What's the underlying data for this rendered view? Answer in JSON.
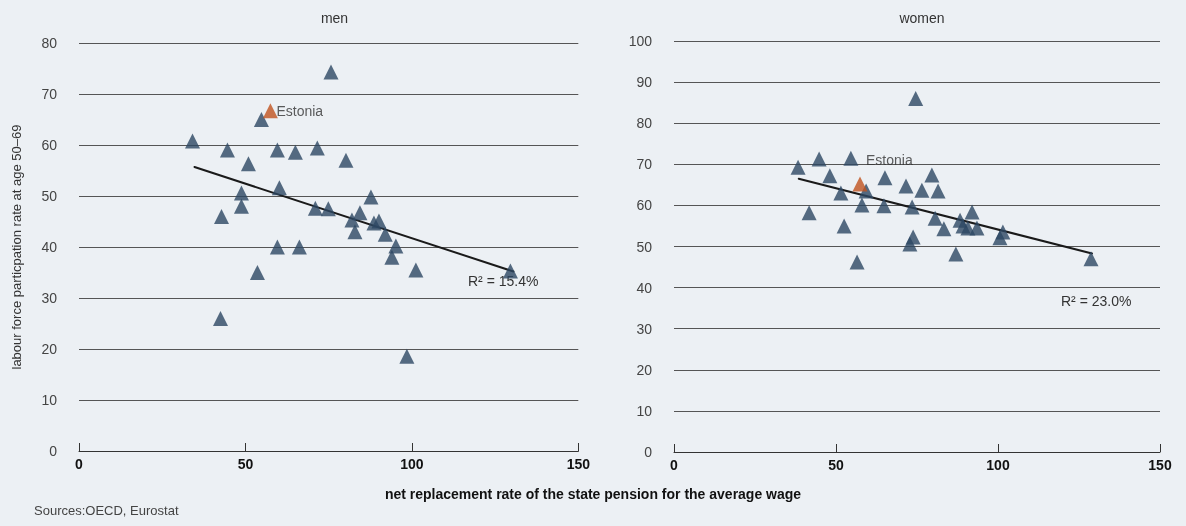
{
  "chart_data": [
    {
      "type": "scatter",
      "title": "men",
      "ylabel": "labour force particpation rate at age 50–69",
      "xlabel": "net replacement rate of the state pension for the average wage",
      "xlim": [
        0,
        150
      ],
      "xticks": [
        0,
        50,
        100,
        150
      ],
      "ylim": [
        0,
        80
      ],
      "yticks": [
        0,
        10,
        20,
        30,
        40,
        50,
        60,
        70,
        80
      ],
      "grid": "y",
      "marker": "triangle",
      "series": [
        {
          "color": "#2d4763",
          "x": [
            34.1,
            42.5,
            42.8,
            44.6,
            50.9,
            48.8,
            48.8,
            54.8,
            53.6,
            59.6,
            60.2,
            59.6,
            65,
            66.2,
            71.6,
            71,
            74.9,
            75.7,
            80.2,
            82,
            82.9,
            84.4,
            87.7,
            88.6,
            90.1,
            92,
            94,
            95.2,
            101.2,
            98.5,
            129.6
          ],
          "values": [
            60.8,
            26,
            46,
            59,
            56.3,
            50.6,
            48,
            65,
            35,
            59,
            51.6,
            40,
            58.6,
            40,
            59.4,
            47.6,
            47.5,
            74.3,
            57,
            45.3,
            43,
            46.7,
            49.8,
            44.7,
            45.1,
            42.5,
            38,
            40.2,
            35.5,
            18.6,
            35.3
          ]
        },
        {
          "color": "#c0521e",
          "x": [
            57.5
          ],
          "values": [
            66.7
          ]
        },
        {
          "type": "line",
          "marker": "none",
          "color": "#1a1a1a",
          "line_style": "solid",
          "x": [
            34.7,
            130.5
          ],
          "values": [
            55.7,
            35.2
          ]
        }
      ],
      "annotations": [
        {
          "text": "Estonia",
          "x": 57.5,
          "y": 66.7
        },
        "R² = 15.4%",
        "Sources:OECD, Eurostat"
      ]
    },
    {
      "type": "scatter",
      "title": "women",
      "xlim": [
        0,
        150
      ],
      "xticks": [
        0,
        50,
        100,
        150
      ],
      "ylim": [
        0,
        100
      ],
      "yticks": [
        0,
        10,
        20,
        30,
        40,
        50,
        60,
        70,
        80,
        90,
        100
      ],
      "grid": "y",
      "marker": "triangle",
      "series": [
        {
          "color": "#2d4763",
          "x": [
            38.3,
            41.7,
            44.8,
            48.1,
            51.5,
            52.5,
            54.6,
            56.5,
            59.3,
            58,
            64.8,
            65.1,
            71.6,
            72.8,
            73.8,
            73.5,
            74.6,
            76.5,
            79.6,
            81.5,
            80.6,
            83.3,
            87,
            88.3,
            89.2,
            90.7,
            92,
            93.5,
            100.6,
            101.5,
            128.7
          ],
          "values": [
            69.3,
            58.2,
            71.3,
            67.2,
            63,
            55,
            71.5,
            46.2,
            63.5,
            60.1,
            59.9,
            66.7,
            64.7,
            50.6,
            52.3,
            59.6,
            86,
            63.7,
            67.4,
            63.5,
            56.9,
            54.3,
            48.2,
            56.4,
            55,
            54.5,
            58.4,
            54.5,
            52.1,
            53.5,
            47
          ]
        },
        {
          "color": "#c0521e",
          "x": [
            57.4
          ],
          "values": [
            65.2
          ]
        },
        {
          "type": "line",
          "marker": "none",
          "color": "#1a1a1a",
          "line_style": "solid",
          "x": [
            38.5,
            129
          ],
          "values": [
            66.5,
            48.3
          ]
        }
      ],
      "annotations": [
        {
          "text": "Estonia",
          "x": 57.4,
          "y": 71
        },
        "R² = 23.0%"
      ]
    }
  ]
}
